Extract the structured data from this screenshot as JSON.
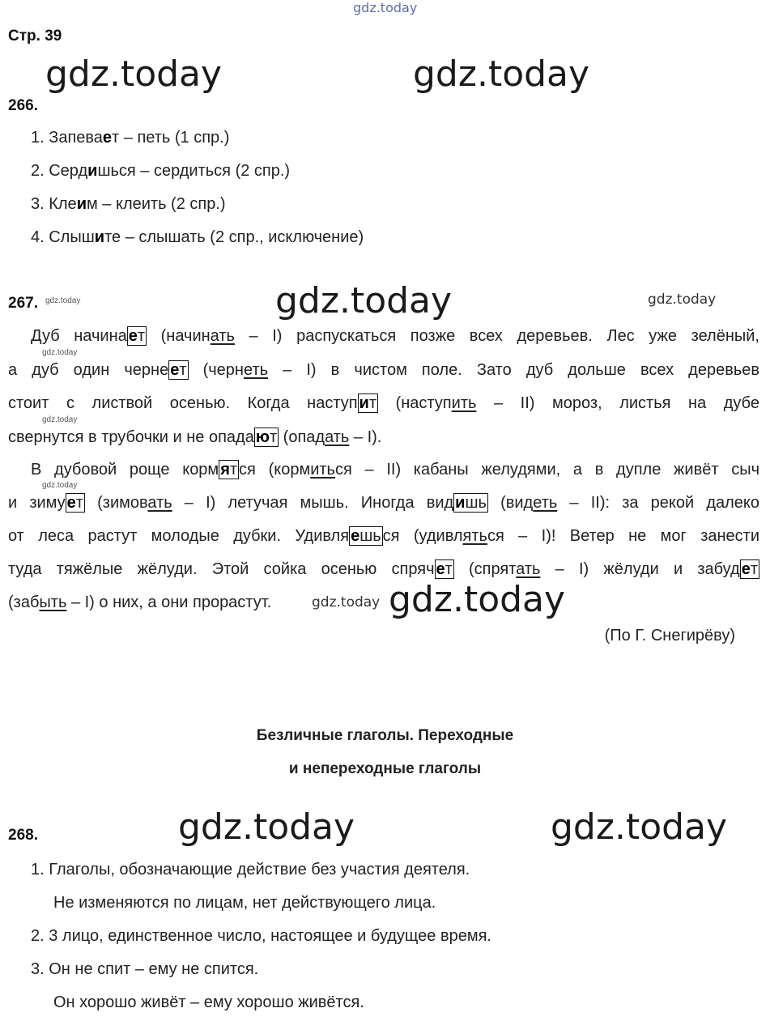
{
  "watermark": "gdz.today",
  "page_label": "Стр. 39",
  "ex266": {
    "number": "266.",
    "items": [
      [
        {
          "t": "1. Запева"
        },
        {
          "t": "е",
          "s": "b"
        },
        {
          "t": "т – петь (1 спр.)"
        }
      ],
      [
        {
          "t": "2. Серд"
        },
        {
          "t": "и",
          "s": "b"
        },
        {
          "t": "шься – сердиться (2 спр.)"
        }
      ],
      [
        {
          "t": "3. Кле"
        },
        {
          "t": "и",
          "s": "b"
        },
        {
          "t": "м – клеить (2 спр.)"
        }
      ],
      [
        {
          "t": "4. Слыш"
        },
        {
          "t": "и",
          "s": "b"
        },
        {
          "t": "те – слышать (2 спр., исключение)"
        }
      ]
    ]
  },
  "ex267": {
    "number": "267.",
    "lines": [
      [
        {
          "t": "Дуб начина"
        },
        {
          "s": "box",
          "b": "е",
          "t": "т"
        },
        {
          "t": " (начин"
        },
        {
          "s": "u",
          "t": "ать"
        },
        {
          "t": " – I) распускаться позже всех деревьев. Лес уже зелёный,"
        }
      ],
      [
        {
          "t": "а дуб один черне"
        },
        {
          "s": "box",
          "b": "е",
          "t": "т"
        },
        {
          "t": " (черн"
        },
        {
          "s": "u",
          "t": "еть"
        },
        {
          "t": " – I) в чистом поле. Зато дуб дольше всех деревьев"
        }
      ],
      [
        {
          "t": "стоит с листвой осенью. Когда наступ"
        },
        {
          "s": "box",
          "b": "и",
          "t": "т"
        },
        {
          "t": " (наступ"
        },
        {
          "s": "u",
          "t": "ить"
        },
        {
          "t": " – II) мороз, листья на дубе"
        }
      ],
      [
        {
          "t": "свернутся в трубочки и не опада"
        },
        {
          "s": "box",
          "b": "ю",
          "t": "т"
        },
        {
          "t": " (опад"
        },
        {
          "s": "u",
          "t": "ать"
        },
        {
          "t": " – I)."
        }
      ],
      [
        {
          "t": "В дубовой роще корм"
        },
        {
          "s": "box",
          "b": "я",
          "t": "т"
        },
        {
          "t": "ся (корм"
        },
        {
          "s": "u",
          "t": "ить"
        },
        {
          "t": "ся – II) кабаны желудями, а в дупле живёт сыч"
        }
      ],
      [
        {
          "t": "и зиму"
        },
        {
          "s": "box",
          "b": "е",
          "t": "т"
        },
        {
          "t": " (зимов"
        },
        {
          "s": "u",
          "t": "ать"
        },
        {
          "t": " – I) летучая мышь. Иногда вид"
        },
        {
          "s": "box",
          "b": "и",
          "t": "шь"
        },
        {
          "t": " (вид"
        },
        {
          "s": "u",
          "t": "еть"
        },
        {
          "t": " – II): за рекой далеко"
        }
      ],
      [
        {
          "t": "от леса растут молодые дубки. Удивля"
        },
        {
          "s": "box",
          "b": "е",
          "t": "шь"
        },
        {
          "t": "ся (удивл"
        },
        {
          "s": "u",
          "t": "ять"
        },
        {
          "t": "ся – I)! Ветер не мог занести"
        }
      ],
      [
        {
          "t": "туда тяжёлые жёлуди. Этой сойка осенью спряч"
        },
        {
          "s": "box",
          "b": "е",
          "t": "т"
        },
        {
          "t": " (спрят"
        },
        {
          "s": "u",
          "t": "ать"
        },
        {
          "t": " – I) жёлуди и забуд"
        },
        {
          "s": "box",
          "b": "е",
          "t": "т"
        }
      ],
      [
        {
          "t": "(заб"
        },
        {
          "s": "u",
          "t": "ыть"
        },
        {
          "t": " – I) о них, а они прорастут."
        }
      ]
    ],
    "source": "(По Г. Снегирёву)"
  },
  "section": {
    "title_line1": "Безличные глаголы. Переходные",
    "title_line2": "и непереходные глаголы"
  },
  "ex268": {
    "number": "268.",
    "lines": [
      "1. Глаголы, обозначающие действие без участия деятеля.",
      "Не изменяются по лицам, нет действующего лица.",
      "2. 3 лицо, единственное число, настоящее и будущее время.",
      "3. Он не спит – ему не спится.",
      "Он хорошо живёт – ему хорошо живётся."
    ]
  }
}
